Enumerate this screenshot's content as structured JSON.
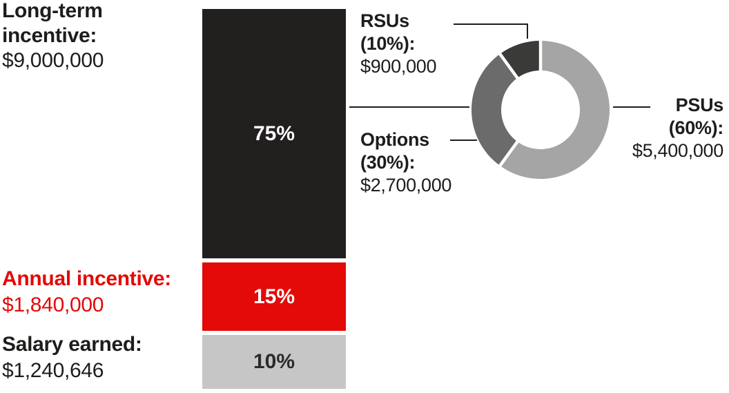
{
  "page": {
    "background": "#ffffff"
  },
  "colors": {
    "near_black": "#221f1f",
    "text_black": "#1d1d1b",
    "red": "#e30a08",
    "bar_gray": "#c6c6c6",
    "donut_psus_gray": "#a5a5a5",
    "donut_options_gray": "#6b6b6b",
    "donut_rsus_dark": "#3a3a38",
    "leader_line": "#1d1d1b"
  },
  "chart_data": {
    "type": "bar",
    "subtype": "stacked-bar-with-donut-breakdown",
    "bar": {
      "categories": [
        "Long-term incentive",
        "Annual incentive",
        "Salary earned"
      ],
      "values": [
        9000000,
        1840000,
        1240646
      ],
      "percent_labels": [
        "75%",
        "15%",
        "10%"
      ],
      "segments": [
        {
          "id": "long_term_incentive",
          "label": "75%",
          "pct": 75,
          "color": "#221f1f",
          "text_color": "#ffffff"
        },
        {
          "id": "annual_incentive",
          "label": "15%",
          "pct": 15,
          "color": "#e30a08",
          "text_color": "#ffffff"
        },
        {
          "id": "salary_earned",
          "label": "10%",
          "pct": 10,
          "color": "#c6c6c6",
          "text_color": "#2b2a29"
        }
      ]
    },
    "donut": {
      "parent_segment": "long_term_incentive",
      "start_angle_deg": 0,
      "direction": "clockwise",
      "outer_radius": 100,
      "inner_radius": 57,
      "segments": [
        {
          "id": "psus",
          "label": "PSUs",
          "pct": 60,
          "value": 5400000,
          "color": "#a5a5a5"
        },
        {
          "id": "options",
          "label": "Options",
          "pct": 30,
          "value": 2700000,
          "color": "#6b6b6b"
        },
        {
          "id": "rsus",
          "label": "RSUs",
          "pct": 10,
          "value": 900000,
          "color": "#3a3a38"
        }
      ]
    }
  },
  "labels": {
    "long_term": {
      "line1": "Long-term",
      "line2": "incentive:",
      "amount": "$9,000,000"
    },
    "annual": {
      "line1": "Annual incentive:",
      "amount": "$1,840,000"
    },
    "salary": {
      "line1": "Salary earned:",
      "amount": "$1,240,646"
    },
    "rsus": {
      "line1": "RSUs",
      "line2": "(10%):",
      "amount": "$900,000"
    },
    "options": {
      "line1": "Options",
      "line2": "(30%):",
      "amount": "$2,700,000"
    },
    "psus": {
      "line1": "PSUs",
      "line2": "(60%):",
      "amount": "$5,400,000"
    }
  }
}
